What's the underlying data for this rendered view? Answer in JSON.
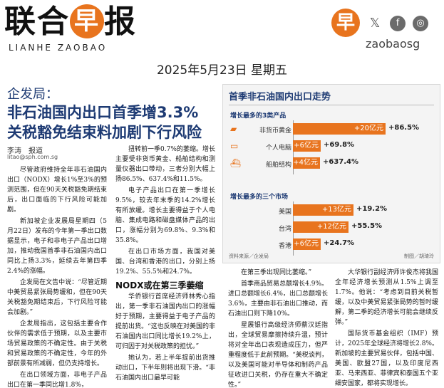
{
  "masthead": {
    "title": "联合早报",
    "title_left": "联合",
    "title_mid": "早",
    "title_right": "报",
    "subtitle": "LIANHE ZAOBAO"
  },
  "brand": {
    "badge": "早",
    "handle": "zaobaosg",
    "social": [
      "x-icon",
      "facebook-icon",
      "instagram-icon"
    ]
  },
  "date": "2025年5月23日 星期五",
  "article": {
    "kicker": "企发局：",
    "headline_line1": "非石油国内出口首季增3.3%",
    "headline_line2": "关税豁免结束料加剧下行风险",
    "byline": "李涛　报道",
    "email": "litao@sph.com.sg",
    "col1": [
      "尽管政府维持全年非石油国内出口（NODX）增长1%至3%的预测范围，但在90天关税豁免期结束后，出口面临的下行风险可能加剧。",
      "新加坡企业发展局星期四（5月22日）发布的今年第一季出口数据显示，电子和非电子产品出口增加，推动我国首季非石油国内出口同比上扬3.3%，延续去年第四季2.4%的涨幅。",
      "企发局在文告中说：“尽管近期中美贸易紧张局势缓和，但在90天关税豁免期结束后，下行风险可能会加剧。”",
      "企发局指出，这包括主要合作伙伴的需求低于预期，以及主要市场贸易政策的不确定性。由于关税和贸易政策的不确定性，今年的外部前景有所减弱，但仍支持增长。",
      "在出口领域方面，非电子产品出口在第一季同比增1.8%，"
    ],
    "col2a": [
      "扭转前一季0.7%的萎缩。增长主要受非货币黄金、船舶结构和测量仪器出口带动，三者分别大幅上扬86.5%、637.4%和11.5%。",
      "电子产品出口在第一季增长9.5%，较去年末季的14.2%增长有所放缓。增长主要得益于个人电脑、集成电路和磁盘媒体产品的出口，涨幅分别为69.8%、9.3%和35.8%。",
      "在出口市场方面，我国对美国、台湾和香港的出口，分别上扬19.2%、55.5%和24.7%。"
    ],
    "subhead": "NODX或在第三季萎缩",
    "col2b": [
      "华侨银行首席经济师林秀心指出，第一季非石油国内出口的涨幅好于预期，主要得益于电子产品的提前出货。“这也反映在对美国的非石油国内出口同比增长19.2%上，可归因于对关税政策的担忧。”",
      "她认为，若上半年提前出货推动出口，下半年则将出现下滑。“非石油国内出口最早可能"
    ],
    "col3": [
      "在第三季出现同比萎缩。”",
      "首季商品贸易总额增长4.9%。进口总额增长6.4%，出口总额增长3.6%，主要由非石油出口推动，而石油出口则下降10%。",
      "星展银行高级经济师蔡汉廷指出，全球贸易摩擦持续升温，预计将对全年出口表现造成压力，但严重程度低于此前预期。“美税谈判，以及美国可能对半导体和制药产品征收进口关税，仍存在重大不确定性。”"
    ],
    "col4": [
      "大华银行副经济师许俊杰将我国全年经济增长预测从1.5%上调至1.7%。他说：“考虑到目前关税暂缓，以及中美贸易紧张局势的暂时缓解，第二季的经济增长可能会继续反弹。”",
      "国际货币基金组织（IMF）预计，2025年全球经济将增长2.8%。新加坡的主要贸易伙伴，包括中国、美国、欧盟27国，以及印度尼西亚、马来西亚、菲律宾和泰国五个亚细安国家，都将实现增长。"
    ]
  },
  "chart": {
    "title": "首季非石油国内出口走势",
    "source": "资料来源／企发局",
    "credit": "制图／胡琦玲",
    "accent": "#e8741e",
    "ink": "#1d3a73",
    "chart_data": [
      {
        "type": "bar",
        "title": "增长最多的3类产品",
        "categories": [
          "非货币黄金",
          "个人电脑",
          "船舶结构"
        ],
        "bar_labels": [
          "+20亿元",
          "+6亿元",
          "+4亿元"
        ],
        "values_sgd_bn": [
          2.0,
          0.6,
          0.4
        ],
        "growth_labels": [
          "+86.5%",
          "+69.8%",
          "+637.4%"
        ],
        "growth_pct": [
          86.5,
          69.8,
          637.4
        ],
        "icons": [
          "gold-bars-icon",
          "laptop-icon",
          "ship-icon"
        ]
      },
      {
        "type": "bar",
        "title": "增长最多的三个市场",
        "categories": [
          "美国",
          "台湾",
          "香港"
        ],
        "bar_labels": [
          "+13亿元",
          "+12亿元",
          "+6亿元"
        ],
        "values_sgd_bn": [
          1.3,
          1.2,
          0.6
        ],
        "growth_labels": [
          "+19.2%",
          "+55.5%",
          "+24.7%"
        ],
        "growth_pct": [
          19.2,
          55.5,
          24.7
        ]
      }
    ]
  }
}
